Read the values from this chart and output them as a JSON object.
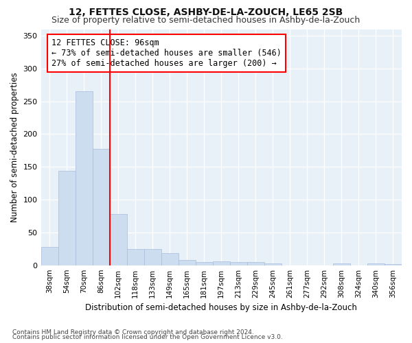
{
  "title": "12, FETTES CLOSE, ASHBY-DE-LA-ZOUCH, LE65 2SB",
  "subtitle": "Size of property relative to semi-detached houses in Ashby-de-la-Zouch",
  "xlabel": "Distribution of semi-detached houses by size in Ashby-de-la-Zouch",
  "ylabel": "Number of semi-detached properties",
  "categories": [
    "38sqm",
    "54sqm",
    "70sqm",
    "86sqm",
    "102sqm",
    "118sqm",
    "133sqm",
    "149sqm",
    "165sqm",
    "181sqm",
    "197sqm",
    "213sqm",
    "229sqm",
    "245sqm",
    "261sqm",
    "277sqm",
    "292sqm",
    "308sqm",
    "324sqm",
    "340sqm",
    "356sqm"
  ],
  "values": [
    28,
    144,
    265,
    178,
    78,
    25,
    25,
    18,
    8,
    5,
    6,
    5,
    5,
    3,
    0,
    0,
    0,
    3,
    0,
    3,
    2
  ],
  "bar_color": "#ccddef",
  "bar_edge_color": "#aabbdd",
  "red_line_index": 4,
  "annotation_title": "12 FETTES CLOSE: 96sqm",
  "annotation_line1": "← 73% of semi-detached houses are smaller (546)",
  "annotation_line2": "27% of semi-detached houses are larger (200) →",
  "ylim": [
    0,
    360
  ],
  "yticks": [
    0,
    50,
    100,
    150,
    200,
    250,
    300,
    350
  ],
  "footnote1": "Contains HM Land Registry data © Crown copyright and database right 2024.",
  "footnote2": "Contains public sector information licensed under the Open Government Licence v3.0.",
  "fig_bg_color": "#ffffff",
  "plot_bg_color": "#e8f0f8",
  "grid_color": "#ffffff",
  "title_fontsize": 10,
  "subtitle_fontsize": 9,
  "annotation_fontsize": 8.5
}
